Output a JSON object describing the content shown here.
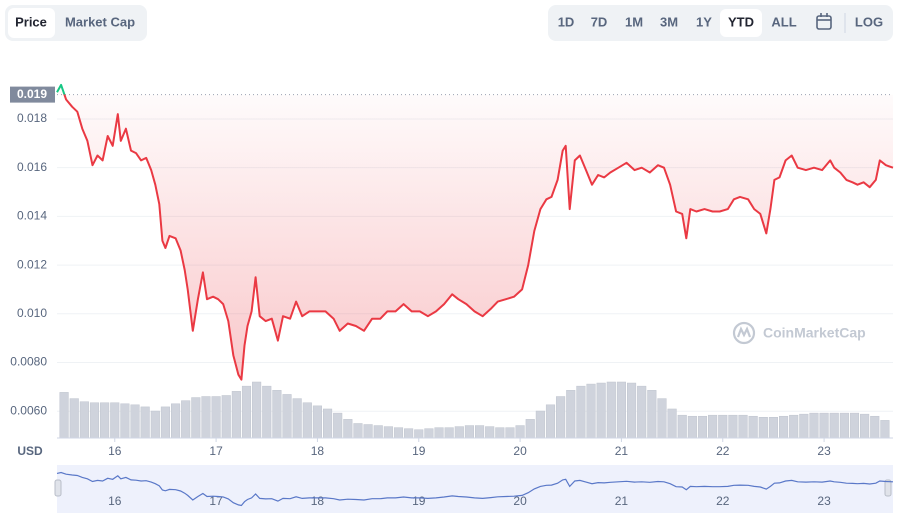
{
  "tabs": [
    "Price",
    "Market Cap"
  ],
  "active_tab": 0,
  "ranges": [
    "1D",
    "7D",
    "1M",
    "3M",
    "1Y",
    "YTD",
    "ALL"
  ],
  "active_range": 5,
  "log_label": "LOG",
  "chart_data": {
    "type": "line",
    "x": [
      15.43,
      15.47,
      15.52,
      15.58,
      15.63,
      15.68,
      15.73,
      15.78,
      15.83,
      15.88,
      15.93,
      15.98,
      16.03,
      16.06,
      16.11,
      16.16,
      16.21,
      16.26,
      16.31,
      16.36,
      16.4,
      16.44,
      16.47,
      16.5,
      16.54,
      16.6,
      16.65,
      16.69,
      16.72,
      16.77,
      16.82,
      16.87,
      16.91,
      16.97,
      17.02,
      17.07,
      17.12,
      17.17,
      17.22,
      17.25,
      17.28,
      17.31,
      17.35,
      17.39,
      17.43,
      17.49,
      17.55,
      17.61,
      17.66,
      17.73,
      17.79,
      17.85,
      17.92,
      18.0,
      18.08,
      18.16,
      18.22,
      18.3,
      18.38,
      18.46,
      18.54,
      18.62,
      18.69,
      18.77,
      18.85,
      18.93,
      19.01,
      19.09,
      19.17,
      19.25,
      19.33,
      19.39,
      19.47,
      19.55,
      19.63,
      19.71,
      19.78,
      19.86,
      19.94,
      20.02,
      20.08,
      20.14,
      20.2,
      20.26,
      20.31,
      20.37,
      20.42,
      20.45,
      20.49,
      20.54,
      20.59,
      20.65,
      20.71,
      20.77,
      20.83,
      20.89,
      20.97,
      21.05,
      21.13,
      21.2,
      21.28,
      21.36,
      21.42,
      21.48,
      21.54,
      21.6,
      21.64,
      21.68,
      21.74,
      21.82,
      21.9,
      21.97,
      22.05,
      22.11,
      22.17,
      22.25,
      22.31,
      22.37,
      22.43,
      22.47,
      22.51,
      22.56,
      22.62,
      22.68,
      22.74,
      22.82,
      22.9,
      22.98,
      23.06,
      23.1,
      23.16,
      23.22,
      23.28,
      23.33,
      23.39,
      23.45,
      23.51,
      23.55,
      23.61,
      23.68
    ],
    "values": [
      0.0191,
      0.0194,
      0.0188,
      0.0185,
      0.0183,
      0.0176,
      0.0171,
      0.0161,
      0.0165,
      0.0163,
      0.0173,
      0.0169,
      0.0182,
      0.0171,
      0.0176,
      0.0167,
      0.0166,
      0.0163,
      0.0164,
      0.0159,
      0.0153,
      0.0145,
      0.013,
      0.0127,
      0.0132,
      0.0131,
      0.0126,
      0.0118,
      0.011,
      0.0093,
      0.0106,
      0.0117,
      0.0106,
      0.0107,
      0.0106,
      0.0104,
      0.0097,
      0.0083,
      0.0075,
      0.0073,
      0.0087,
      0.0095,
      0.0101,
      0.0115,
      0.0099,
      0.0097,
      0.0098,
      0.0089,
      0.0099,
      0.0098,
      0.0105,
      0.0099,
      0.0101,
      0.0101,
      0.0101,
      0.0098,
      0.0093,
      0.0096,
      0.0095,
      0.0093,
      0.0098,
      0.0098,
      0.0101,
      0.0101,
      0.0104,
      0.0101,
      0.0101,
      0.0099,
      0.0101,
      0.0104,
      0.0108,
      0.0106,
      0.0104,
      0.0101,
      0.0099,
      0.0102,
      0.0105,
      0.0106,
      0.0107,
      0.011,
      0.012,
      0.0134,
      0.0143,
      0.0147,
      0.0148,
      0.0155,
      0.0167,
      0.0169,
      0.0143,
      0.0163,
      0.0165,
      0.0159,
      0.0153,
      0.0157,
      0.0156,
      0.0158,
      0.016,
      0.0162,
      0.0159,
      0.016,
      0.0158,
      0.0161,
      0.016,
      0.0153,
      0.0142,
      0.0141,
      0.0131,
      0.0143,
      0.0142,
      0.0143,
      0.0142,
      0.0142,
      0.0143,
      0.0147,
      0.0148,
      0.0147,
      0.0143,
      0.0141,
      0.0133,
      0.0143,
      0.0155,
      0.0156,
      0.0163,
      0.0165,
      0.016,
      0.0159,
      0.016,
      0.0159,
      0.0163,
      0.016,
      0.0158,
      0.0155,
      0.0154,
      0.0153,
      0.0154,
      0.0152,
      0.0155,
      0.0163,
      0.0161,
      0.016
    ],
    "color": "#ea3943",
    "up_color": "#16c784",
    "baseline": 0.019,
    "xlim": [
      15.43,
      23.68
    ],
    "ylim": [
      0.0049,
      0.0196
    ],
    "xticks": [
      16,
      17,
      18,
      19,
      20,
      21,
      22,
      23
    ],
    "yticks": [
      {
        "value": 0.006,
        "label": "0.0060"
      },
      {
        "value": 0.008,
        "label": "0.0080"
      },
      {
        "value": 0.01,
        "label": "0.010"
      },
      0.012,
      0.014,
      0.016,
      0.018
    ],
    "grid": true,
    "currency": "USD",
    "watermark": "CoinMarketCap",
    "volume": {
      "color": "#cfd3dc",
      "x": [
        15.5,
        15.6,
        15.7,
        15.8,
        15.9,
        16.0,
        16.1,
        16.2,
        16.3,
        16.4,
        16.5,
        16.6,
        16.7,
        16.8,
        16.9,
        17.0,
        17.1,
        17.2,
        17.3,
        17.4,
        17.5,
        17.6,
        17.7,
        17.8,
        17.9,
        18.0,
        18.1,
        18.2,
        18.3,
        18.4,
        18.5,
        18.6,
        18.7,
        18.8,
        18.9,
        19.0,
        19.1,
        19.2,
        19.3,
        19.4,
        19.5,
        19.6,
        19.7,
        19.8,
        19.9,
        20.0,
        20.1,
        20.2,
        20.3,
        20.4,
        20.5,
        20.6,
        20.7,
        20.8,
        20.9,
        21.0,
        21.1,
        21.2,
        21.3,
        21.4,
        21.5,
        21.6,
        21.7,
        21.8,
        21.9,
        22.0,
        22.1,
        22.2,
        22.3,
        22.4,
        22.5,
        22.6,
        22.7,
        22.8,
        22.9,
        23.0,
        23.1,
        23.2,
        23.3,
        23.4,
        23.5,
        23.6
      ],
      "values": [
        44,
        38,
        35,
        34,
        34,
        34,
        33,
        32,
        30,
        26,
        30,
        33,
        36,
        39,
        40,
        40,
        41,
        45,
        50,
        54,
        50,
        46,
        42,
        38,
        34,
        31,
        28,
        24,
        18,
        14,
        13,
        12,
        11,
        10,
        9,
        8,
        9,
        10,
        10,
        11,
        12,
        12,
        11,
        10,
        10,
        12,
        18,
        26,
        32,
        40,
        46,
        50,
        52,
        53,
        54,
        54,
        53,
        50,
        46,
        38,
        28,
        22,
        21,
        21,
        22,
        22,
        22,
        22,
        21,
        20,
        20,
        21,
        22,
        23,
        24,
        24,
        24,
        24,
        24,
        23,
        21,
        17
      ]
    },
    "navigator_color": "#5a78c8"
  }
}
